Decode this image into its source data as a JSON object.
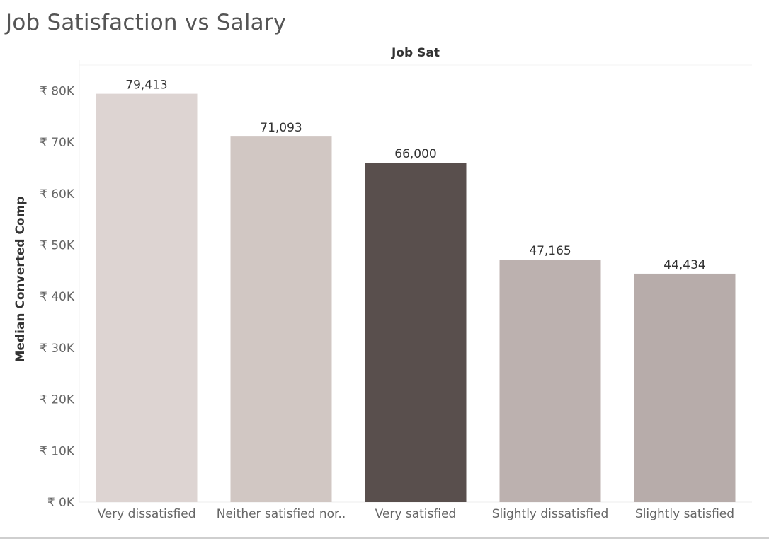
{
  "chart_data": {
    "type": "bar",
    "title": "Job Satisfaction vs Salary",
    "xlabel": "Job Sat",
    "ylabel": "Median Converted Comp",
    "categories": [
      "Very dissatisfied",
      "Neither satisfied nor..",
      "Very satisfied",
      "Slightly dissatisfied",
      "Slightly satisfied"
    ],
    "values": [
      79413,
      71093,
      66000,
      47165,
      44434
    ],
    "value_labels": [
      "79,413",
      "71,093",
      "66,000",
      "47,165",
      "44,434"
    ],
    "bar_colors": [
      "#ddd4d2",
      "#d1c7c3",
      "#594f4d",
      "#bcb1af",
      "#b7acaa"
    ],
    "ylim": [
      0,
      85000
    ],
    "yticks": [
      0,
      10000,
      20000,
      30000,
      40000,
      50000,
      60000,
      70000,
      80000
    ],
    "ytick_labels": [
      "₹ 0K",
      "₹ 10K",
      "₹ 20K",
      "₹ 30K",
      "₹ 40K",
      "₹ 50K",
      "₹ 60K",
      "₹ 70K",
      "₹ 80K"
    ],
    "grid": false,
    "legend": "none"
  }
}
